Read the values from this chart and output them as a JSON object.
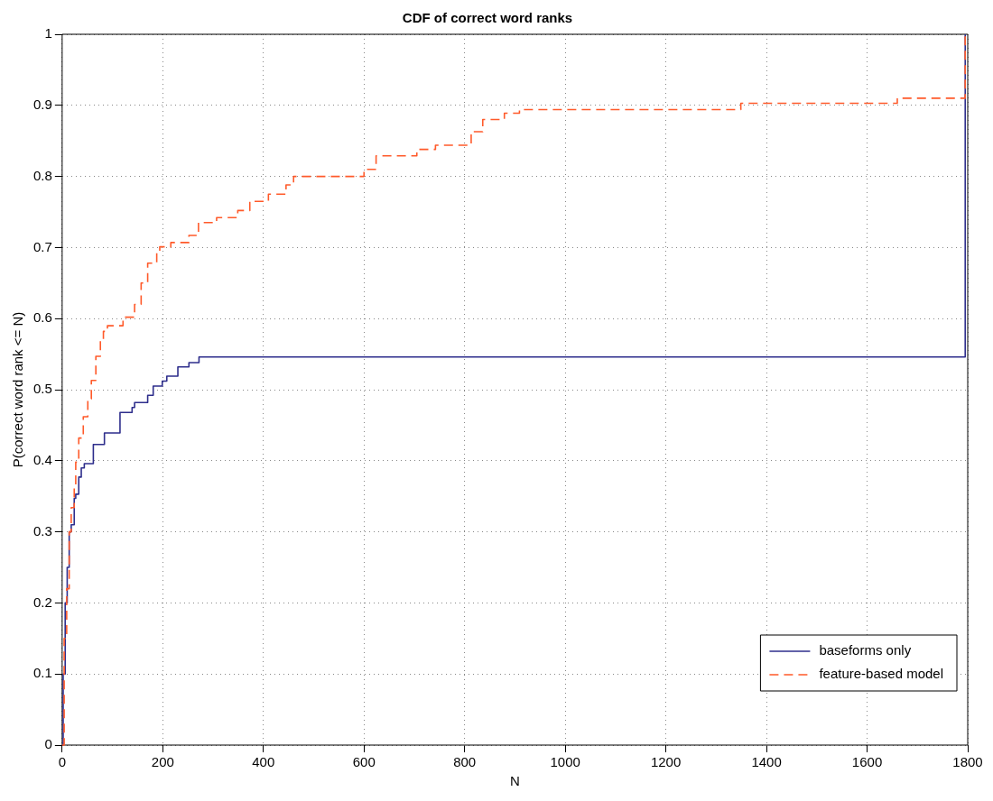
{
  "chart_data": {
    "type": "step",
    "title": "CDF of correct word ranks",
    "xlabel": "N",
    "ylabel": "P(correct word rank <= N)",
    "xlim": [
      0,
      1800
    ],
    "xticks": [
      0,
      200,
      400,
      600,
      800,
      1000,
      1200,
      1400,
      1600,
      1800
    ],
    "ylim": [
      0,
      1
    ],
    "yticks": [
      0,
      0.1,
      0.2,
      0.3,
      0.4,
      0.5,
      0.6,
      0.7,
      0.8,
      0.9,
      1
    ],
    "grid": true,
    "legend": "bottom right",
    "series": [
      {
        "name": "baseforms only",
        "color": "#2e2e8c",
        "line_style": "solid",
        "x": [
          0,
          2,
          6,
          10,
          14,
          18,
          24,
          27,
          33,
          38,
          44,
          62,
          84,
          115,
          139,
          144,
          170,
          181,
          199,
          208,
          230,
          252,
          272,
          1795
        ],
        "values": [
          0,
          0.1,
          0.2,
          0.25,
          0.3,
          0.31,
          0.347,
          0.353,
          0.377,
          0.39,
          0.396,
          0.423,
          0.439,
          0.468,
          0.475,
          0.482,
          0.492,
          0.505,
          0.512,
          0.519,
          0.532,
          0.538,
          0.546,
          1
        ]
      },
      {
        "name": "feature-based model",
        "color": "#ff5a2a",
        "line_style": "dashed",
        "x": [
          0,
          4,
          9,
          14,
          18,
          24,
          27,
          33,
          42,
          51,
          58,
          67,
          76,
          82,
          90,
          121,
          144,
          157,
          170,
          188,
          194,
          216,
          252,
          271,
          307,
          349,
          373,
          410,
          445,
          460,
          600,
          624,
          705,
          742,
          813,
          836,
          879,
          909,
          1349,
          1660,
          1795
        ],
        "values": [
          0,
          0.15,
          0.22,
          0.3,
          0.334,
          0.364,
          0.398,
          0.432,
          0.462,
          0.487,
          0.513,
          0.547,
          0.569,
          0.582,
          0.59,
          0.602,
          0.62,
          0.65,
          0.678,
          0.692,
          0.701,
          0.707,
          0.717,
          0.735,
          0.742,
          0.752,
          0.765,
          0.775,
          0.788,
          0.8,
          0.81,
          0.829,
          0.838,
          0.844,
          0.863,
          0.88,
          0.889,
          0.894,
          0.903,
          0.91,
          1
        ]
      }
    ]
  }
}
